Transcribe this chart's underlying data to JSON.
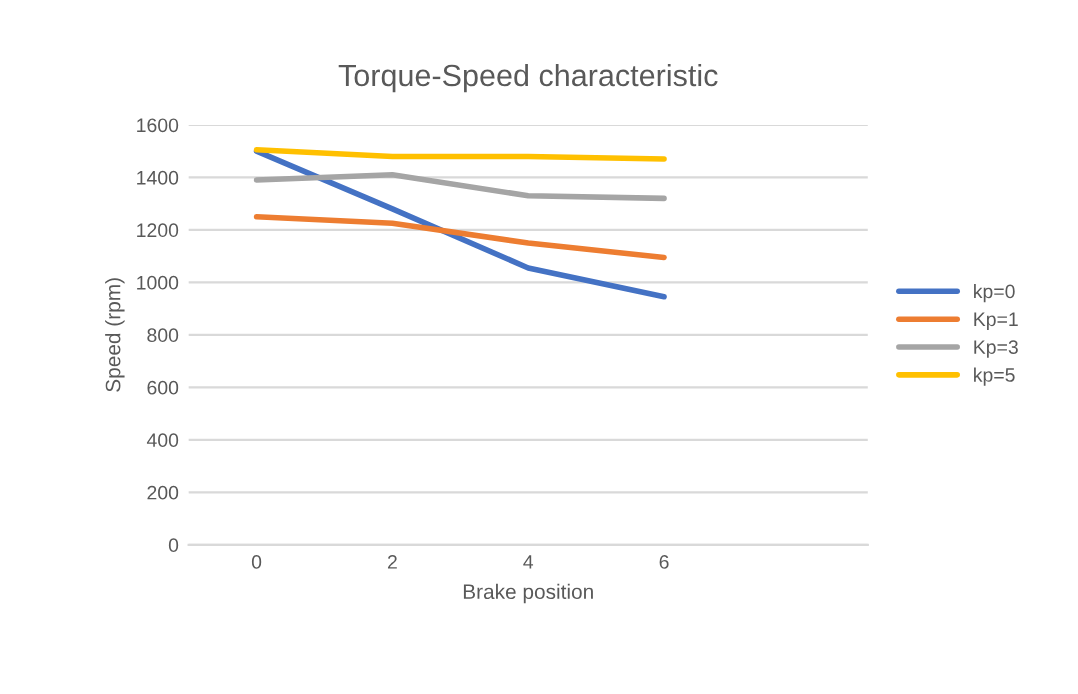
{
  "chart_data": {
    "type": "line",
    "title": "Torque-Speed characteristic",
    "xlabel": "Brake position",
    "ylabel": "Speed (rpm)",
    "categories": [
      "0",
      "2",
      "4",
      "6",
      null
    ],
    "series": [
      {
        "name": "kp=0",
        "color": "#4472c4",
        "values": [
          1500,
          1280,
          1055,
          945,
          null
        ]
      },
      {
        "name": "Kp=1",
        "color": "#ed7d31",
        "values": [
          1250,
          1225,
          1150,
          1095,
          null
        ]
      },
      {
        "name": "Kp=3",
        "color": "#a5a5a5",
        "values": [
          1390,
          1410,
          1330,
          1320,
          null
        ]
      },
      {
        "name": "kp=5",
        "color": "#ffc000",
        "values": [
          1505,
          1480,
          1480,
          1470,
          null
        ]
      }
    ],
    "ylim": [
      0,
      1600
    ],
    "yticks": [
      0,
      200,
      400,
      600,
      800,
      1000,
      1200,
      1400,
      1600
    ],
    "grid": "y",
    "legend": "right"
  }
}
